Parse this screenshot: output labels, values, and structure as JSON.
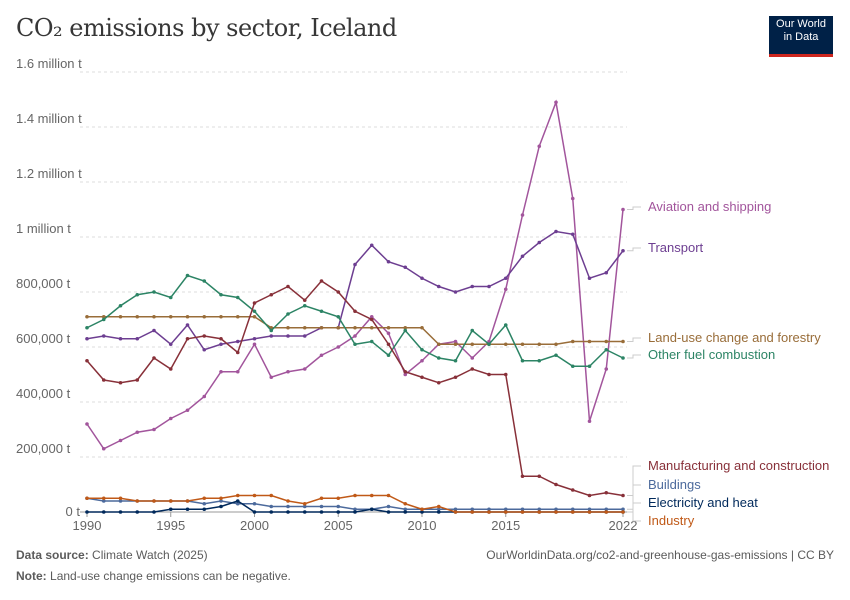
{
  "header": {
    "title": "CO₂ emissions by sector, Iceland",
    "logo_line1": "Our World",
    "logo_line2": "in Data"
  },
  "footer": {
    "source_label": "Data source:",
    "source": "Climate Watch (2025)",
    "url": "OurWorldinData.org/co2-and-greenhouse-gas-emissions | CC BY",
    "note_label": "Note:",
    "note": "Land-use change emissions can be negative."
  },
  "chart_data": {
    "type": "line",
    "title": "CO₂ emissions by sector, Iceland",
    "xlim": [
      1990,
      2022
    ],
    "ylim": [
      0,
      1600000
    ],
    "grid": "horizontal dashed",
    "legend": "right (line-end labels)",
    "x_ticks": [
      "1990",
      "1995",
      "2000",
      "2005",
      "2010",
      "2015",
      "2022"
    ],
    "x_tick_values": [
      1990,
      1995,
      2000,
      2005,
      2010,
      2015,
      2022
    ],
    "y_ticks": [
      "0 t",
      "200,000 t",
      "400,000 t",
      "600,000 t",
      "800,000 t",
      "1 million t",
      "1.2 million t",
      "1.4 million t",
      "1.6 million t"
    ],
    "y_tick_values": [
      0,
      200000,
      400000,
      600000,
      800000,
      1000000,
      1200000,
      1400000,
      1600000
    ],
    "x": [
      1990,
      1991,
      1992,
      1993,
      1994,
      1995,
      1996,
      1997,
      1998,
      1999,
      2000,
      2001,
      2002,
      2003,
      2004,
      2005,
      2006,
      2007,
      2008,
      2009,
      2010,
      2011,
      2012,
      2013,
      2014,
      2015,
      2016,
      2017,
      2018,
      2019,
      2020,
      2021,
      2022
    ],
    "series": [
      {
        "name": "Aviation and shipping",
        "color": "#a2559c",
        "values": [
          320000,
          230000,
          260000,
          290000,
          300000,
          340000,
          370000,
          420000,
          510000,
          510000,
          610000,
          490000,
          510000,
          520000,
          570000,
          600000,
          640000,
          710000,
          650000,
          500000,
          550000,
          610000,
          620000,
          560000,
          620000,
          810000,
          1080000,
          1330000,
          1490000,
          1140000,
          330000,
          520000,
          1100000
        ]
      },
      {
        "name": "Transport",
        "color": "#6d3e91",
        "values": [
          630000,
          640000,
          630000,
          630000,
          660000,
          610000,
          680000,
          590000,
          610000,
          620000,
          630000,
          640000,
          640000,
          640000,
          670000,
          670000,
          900000,
          970000,
          910000,
          890000,
          850000,
          820000,
          800000,
          820000,
          820000,
          850000,
          930000,
          980000,
          1020000,
          1010000,
          850000,
          870000,
          950000
        ]
      },
      {
        "name": "Land-use change and forestry",
        "color": "#996d39",
        "values": [
          710000,
          710000,
          710000,
          710000,
          710000,
          710000,
          710000,
          710000,
          710000,
          710000,
          710000,
          670000,
          670000,
          670000,
          670000,
          670000,
          670000,
          670000,
          670000,
          670000,
          670000,
          610000,
          610000,
          610000,
          610000,
          610000,
          610000,
          610000,
          610000,
          620000,
          620000,
          620000,
          620000
        ]
      },
      {
        "name": "Other fuel combustion",
        "color": "#2c8465",
        "values": [
          670000,
          700000,
          750000,
          790000,
          800000,
          780000,
          860000,
          840000,
          790000,
          780000,
          730000,
          660000,
          720000,
          750000,
          730000,
          710000,
          610000,
          620000,
          570000,
          660000,
          590000,
          560000,
          550000,
          660000,
          610000,
          680000,
          550000,
          550000,
          570000,
          530000,
          530000,
          590000,
          560000
        ]
      },
      {
        "name": "Manufacturing and construction",
        "color": "#883039",
        "values": [
          550000,
          480000,
          470000,
          480000,
          560000,
          520000,
          630000,
          640000,
          630000,
          580000,
          760000,
          790000,
          820000,
          770000,
          840000,
          800000,
          730000,
          700000,
          610000,
          510000,
          490000,
          470000,
          490000,
          520000,
          500000,
          500000,
          130000,
          130000,
          100000,
          80000,
          60000,
          70000,
          60000
        ]
      },
      {
        "name": "Buildings",
        "color": "#4c6a9c",
        "values": [
          50000,
          40000,
          40000,
          40000,
          40000,
          40000,
          40000,
          30000,
          40000,
          30000,
          30000,
          20000,
          20000,
          20000,
          20000,
          20000,
          10000,
          10000,
          20000,
          10000,
          10000,
          10000,
          10000,
          10000,
          10000,
          10000,
          10000,
          10000,
          10000,
          10000,
          10000,
          10000,
          10000
        ]
      },
      {
        "name": "Electricity and heat",
        "color": "#00295b",
        "values": [
          0,
          0,
          0,
          0,
          0,
          10000,
          10000,
          10000,
          20000,
          40000,
          0,
          0,
          0,
          0,
          0,
          0,
          0,
          10000,
          0,
          0,
          0,
          0,
          0,
          0,
          0,
          0,
          0,
          0,
          0,
          0,
          0,
          0,
          0
        ]
      },
      {
        "name": "Industry",
        "color": "#c05917",
        "values": [
          50000,
          50000,
          50000,
          40000,
          40000,
          40000,
          40000,
          50000,
          50000,
          60000,
          60000,
          60000,
          40000,
          30000,
          50000,
          50000,
          60000,
          60000,
          60000,
          30000,
          10000,
          20000,
          0,
          0,
          0,
          0,
          0,
          0,
          0,
          0,
          0,
          0,
          0
        ]
      }
    ]
  }
}
